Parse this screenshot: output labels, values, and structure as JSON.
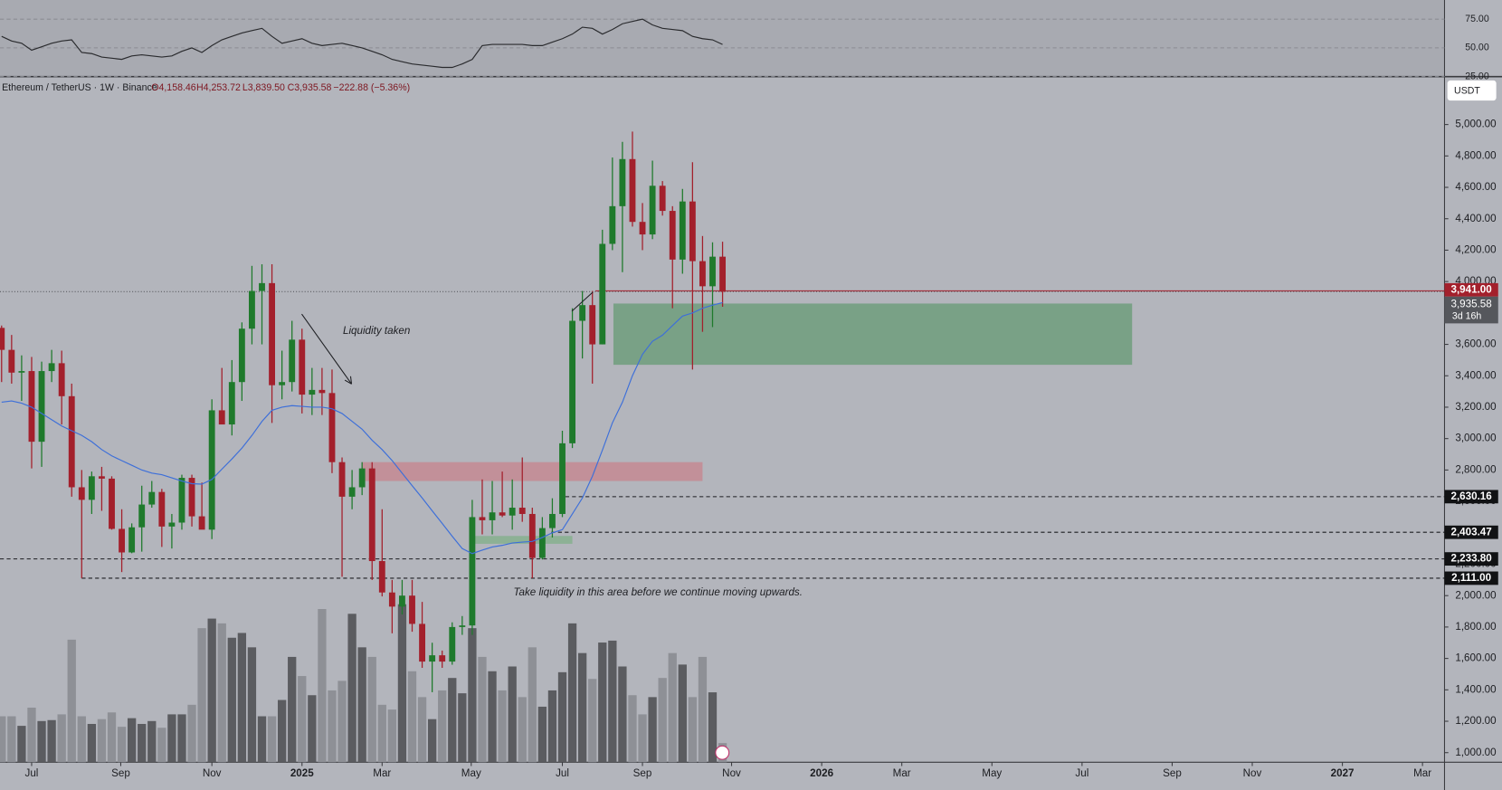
{
  "chart_data": {
    "type": "candlestick",
    "header": {
      "symbol": "Ethereum / TetherUS · 1W · Binance",
      "open": "O4,158.46",
      "high": "H4,253.72",
      "low": "L3,839.50",
      "close": "C3,935.58",
      "change": "−222.88 (−5.36%)"
    },
    "currency": "USDT",
    "annotations": {
      "liquidity_taken": "Liquidity taken",
      "take_liquidity": "Take liquidity in this area before we continue moving upwards."
    },
    "up_color": "#1f7a2c",
    "down_color": "#a3202c",
    "x": [
      -3,
      -2,
      -1,
      0,
      1,
      2,
      3,
      4,
      5,
      6,
      7,
      8,
      9,
      10,
      11,
      12,
      13,
      14,
      15,
      16,
      17,
      18,
      19,
      20,
      21,
      22,
      23,
      24,
      25,
      26,
      27,
      28,
      29,
      30,
      31,
      32,
      33,
      34,
      35,
      36,
      37,
      38,
      39,
      40,
      41,
      42,
      43,
      44,
      45,
      46,
      47,
      48,
      49,
      50,
      51,
      52,
      53,
      54,
      55,
      56,
      57,
      58,
      59,
      60,
      61,
      62,
      63,
      64,
      65,
      66,
      67,
      68,
      69
    ],
    "open": [
      3705,
      3565,
      3420,
      3430,
      2980,
      3430,
      3480,
      3270,
      2690,
      2610,
      2760,
      2745,
      2425,
      2275,
      2435,
      2580,
      2660,
      2440,
      2465,
      2750,
      2505,
      2420,
      3180,
      3090,
      3360,
      3700,
      3940,
      3990,
      3340,
      3360,
      3630,
      3280,
      3310,
      3290,
      2850,
      2630,
      2690,
      2810,
      2220,
      2020,
      1930,
      2000,
      1820,
      1580,
      1620,
      1580,
      1800,
      1810,
      2500,
      2480,
      2530,
      2510,
      2560,
      2520,
      2240,
      2430,
      2520,
      2970,
      3750,
      3850,
      3600,
      4240,
      4480,
      4780,
      4380,
      4300,
      4610,
      4450,
      4140,
      4510,
      4130,
      3970,
      4158.46
    ],
    "high": [
      3720,
      3660,
      3530,
      3520,
      3490,
      3565,
      3560,
      3350,
      2800,
      2790,
      2820,
      2760,
      2550,
      2460,
      2700,
      2730,
      2680,
      2520,
      2770,
      2770,
      2720,
      3250,
      3450,
      3500,
      3740,
      4100,
      4110,
      4110,
      3560,
      3750,
      3700,
      3450,
      3450,
      3440,
      2880,
      2800,
      2850,
      2850,
      2550,
      2100,
      2100,
      2100,
      1960,
      1700,
      1650,
      1830,
      1870,
      2610,
      2740,
      2730,
      2790,
      2740,
      2880,
      2560,
      2500,
      2620,
      3050,
      3830,
      3940,
      3940,
      4330,
      4790,
      4890,
      4955,
      4500,
      4770,
      4640,
      4480,
      4590,
      4760,
      4290,
      4250,
      4253.72
    ],
    "low": [
      3360,
      3350,
      3240,
      2810,
      2820,
      3360,
      3090,
      2630,
      2111,
      2520,
      2540,
      2420,
      2150,
      2270,
      2280,
      2560,
      2310,
      2300,
      2420,
      2440,
      2440,
      2360,
      3100,
      3020,
      3240,
      3600,
      3600,
      3100,
      3250,
      3300,
      3160,
      3150,
      3150,
      2780,
      2120,
      2550,
      2640,
      2100,
      1995,
      1760,
      1880,
      1770,
      1540,
      1385,
      1540,
      1560,
      1750,
      1750,
      2390,
      2390,
      2500,
      2420,
      2470,
      2111,
      2230,
      2370,
      2500,
      2940,
      3510,
      3350,
      3600,
      4200,
      4060,
      4350,
      4200,
      4270,
      4420,
      3830,
      4050,
      3440,
      3680,
      3710,
      3839.5
    ],
    "close": [
      3565,
      3420,
      3430,
      2980,
      3430,
      3480,
      3270,
      2690,
      2610,
      2760,
      2745,
      2425,
      2275,
      2435,
      2580,
      2660,
      2440,
      2465,
      2750,
      2505,
      2420,
      3180,
      3090,
      3360,
      3700,
      3940,
      3990,
      3340,
      3360,
      3630,
      3280,
      3310,
      3290,
      2850,
      2630,
      2690,
      2810,
      2220,
      2020,
      1930,
      2000,
      1820,
      1580,
      1620,
      1580,
      1800,
      1810,
      2500,
      2480,
      2530,
      2510,
      2560,
      2520,
      2240,
      2430,
      2520,
      2970,
      3750,
      3850,
      3600,
      4240,
      4480,
      4780,
      4380,
      4300,
      4610,
      4450,
      4140,
      4510,
      4130,
      3970,
      4158.46,
      3935.58
    ],
    "ma": {
      "color": "#3d6fd9",
      "values": [
        3232,
        3240,
        3225,
        3200,
        3160,
        3120,
        3080,
        3050,
        3020,
        2980,
        2930,
        2890,
        2860,
        2830,
        2800,
        2780,
        2770,
        2750,
        2730,
        2713,
        2710,
        2740,
        2805,
        2870,
        2940,
        3020,
        3110,
        3180,
        3200,
        3210,
        3205,
        3200,
        3200,
        3190,
        3160,
        3110,
        3060,
        2990,
        2930,
        2860,
        2780,
        2700,
        2622,
        2540,
        2460,
        2378,
        2300,
        2268,
        2290,
        2310,
        2320,
        2335,
        2341,
        2345,
        2370,
        2400,
        2420,
        2520,
        2622,
        2760,
        2927,
        3100,
        3232,
        3400,
        3537,
        3620,
        3659,
        3720,
        3780,
        3800,
        3830,
        3850,
        3866
      ]
    },
    "volume": {
      "ylim": [
        0,
        170
      ],
      "up_color": "#5b5c60",
      "down_color": "#8e9096",
      "values": [
        48,
        48,
        38,
        57,
        43,
        44,
        50,
        128,
        48,
        40,
        45,
        52,
        37,
        46,
        40,
        43,
        36,
        50,
        50,
        60,
        140,
        150,
        145,
        130,
        135,
        120,
        48,
        48,
        65,
        110,
        90,
        70,
        160,
        75,
        85,
        155,
        120,
        110,
        60,
        55,
        165,
        95,
        68,
        45,
        75,
        88,
        72,
        140,
        110,
        95,
        75,
        100,
        68,
        120,
        58,
        75,
        94,
        145,
        114,
        87,
        125,
        127,
        100,
        70,
        50,
        68,
        88,
        114,
        102,
        68,
        110,
        73,
        20
      ]
    },
    "rsi": {
      "color": "#2a2b2e",
      "ylim": [
        25.8,
        91.7
      ],
      "yticks": [
        {
          "value": 75,
          "label": "75.00"
        },
        {
          "value": 50,
          "label": "50.00"
        },
        {
          "value": 25,
          "label": "25.00"
        }
      ],
      "values": [
        60,
        56,
        54,
        48,
        51,
        54,
        56,
        57,
        46,
        45,
        42,
        41,
        40,
        43,
        44,
        43,
        42,
        43,
        47,
        50,
        46,
        52,
        57,
        60,
        63,
        65,
        67,
        60,
        54,
        56,
        58,
        54,
        52,
        53,
        54,
        52,
        50,
        47,
        44,
        40,
        38,
        36,
        35,
        34,
        33,
        33,
        36,
        40,
        52,
        53,
        53,
        53,
        53,
        52,
        52,
        55,
        58,
        62,
        68,
        67,
        62,
        66,
        71,
        73,
        75,
        70,
        67,
        66,
        65,
        60,
        58,
        57,
        53
      ]
    },
    "xlim": [
      -3.16,
      141.1
    ],
    "ylim": [
      939,
      5293
    ],
    "xticks": [
      {
        "value": 0,
        "label": "Jul"
      },
      {
        "value": 8.9,
        "label": "Sep"
      },
      {
        "value": 18,
        "label": "Nov"
      },
      {
        "value": 27,
        "label": "2025"
      },
      {
        "value": 35,
        "label": "Mar"
      },
      {
        "value": 43.9,
        "label": "May"
      },
      {
        "value": 53,
        "label": "Jul"
      },
      {
        "value": 61,
        "label": "Sep"
      },
      {
        "value": 69.9,
        "label": "Nov"
      },
      {
        "value": 78.9,
        "label": "2026"
      },
      {
        "value": 86.9,
        "label": "Mar"
      },
      {
        "value": 95.9,
        "label": "May"
      },
      {
        "value": 104.9,
        "label": "Jul"
      },
      {
        "value": 113.9,
        "label": "Sep"
      },
      {
        "value": 121.9,
        "label": "Nov"
      },
      {
        "value": 130.9,
        "label": "2027"
      },
      {
        "value": 138.9,
        "label": "Mar"
      }
    ],
    "yticks": [
      {
        "value": 1000,
        "label": "1,000.00"
      },
      {
        "value": 1200,
        "label": "1,200.00"
      },
      {
        "value": 1400,
        "label": "1,400.00"
      },
      {
        "value": 1600,
        "label": "1,600.00"
      },
      {
        "value": 1800,
        "label": "1,800.00"
      },
      {
        "value": 2000,
        "label": "2,000.00"
      },
      {
        "value": 2200,
        "label": "2,200.00"
      },
      {
        "value": 2400,
        "label": "2,400.00"
      },
      {
        "value": 2600,
        "label": "2,600.00"
      },
      {
        "value": 2800,
        "label": "2,800.00"
      },
      {
        "value": 3000,
        "label": "3,000.00"
      },
      {
        "value": 3200,
        "label": "3,200.00"
      },
      {
        "value": 3400,
        "label": "3,400.00"
      },
      {
        "value": 3600,
        "label": "3,600.00"
      },
      {
        "value": 3800,
        "label": "3,800.00"
      },
      {
        "value": 4000,
        "label": "4,000.00"
      },
      {
        "value": 4200,
        "label": "4,200.00"
      },
      {
        "value": 4400,
        "label": "4,400.00"
      },
      {
        "value": 4600,
        "label": "4,600.00"
      },
      {
        "value": 4800,
        "label": "4,800.00"
      },
      {
        "value": 5000,
        "label": "5,000.00"
      }
    ],
    "levels": [
      {
        "value": 2630.16,
        "label": "2,630.16",
        "from": 53.3
      },
      {
        "value": 2403.47,
        "label": "2,403.47",
        "from": 51.9
      },
      {
        "value": 2233.8,
        "label": "2,233.80",
        "from": -3.16
      },
      {
        "value": 2111,
        "label": "2,111.00",
        "from": 5
      }
    ],
    "price_line": {
      "value": 3941,
      "label": "3,941.00",
      "from": 56.3,
      "color": "#a3202c"
    },
    "last_price": {
      "value": 3935.58,
      "label": "3,935.58",
      "countdown": "3d 16h"
    },
    "zones": [
      {
        "x": [
          58.1,
          109.9
        ],
        "y": [
          3470,
          3860
        ],
        "color": "#6f9e7c"
      },
      {
        "x": [
          33,
          67
        ],
        "y": [
          2730,
          2850
        ],
        "color": "#c48a93"
      },
      {
        "x": [
          44.2,
          54
        ],
        "y": [
          2330,
          2380
        ],
        "color": "#86b08e"
      }
    ]
  }
}
